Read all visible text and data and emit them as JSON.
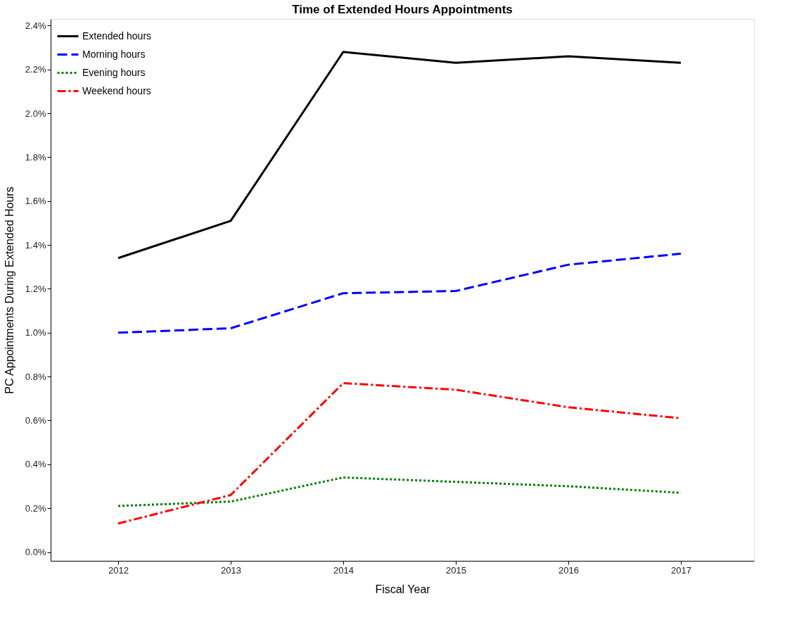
{
  "chart_data": {
    "type": "line",
    "title": "Time of Extended Hours Appointments",
    "xlabel": "Fiscal Year",
    "ylabel": "PC Appointments During Extended Hours",
    "x": [
      2012,
      2013,
      2014,
      2015,
      2016,
      2017
    ],
    "series": [
      {
        "name": "Extended hours",
        "color": "#000000",
        "line_style": "solid",
        "values": [
          1.34,
          1.51,
          2.28,
          2.23,
          2.26,
          2.23
        ]
      },
      {
        "name": "Morning hours",
        "color": "#0000ff",
        "line_style": "dashed",
        "values": [
          1.0,
          1.02,
          1.18,
          1.19,
          1.31,
          1.36
        ]
      },
      {
        "name": "Evening hours",
        "color": "#008000",
        "line_style": "dotted",
        "values": [
          0.21,
          0.23,
          0.34,
          0.32,
          0.3,
          0.27
        ]
      },
      {
        "name": "Weekend hours",
        "color": "#ff0000",
        "line_style": "dashdot",
        "values": [
          0.13,
          0.26,
          0.77,
          0.74,
          0.66,
          0.61
        ]
      }
    ],
    "xlim": [
      2011.4,
      2017.65
    ],
    "xticks": [
      2012,
      2013,
      2014,
      2015,
      2016,
      2017
    ],
    "ylim": [
      -0.04,
      2.43
    ],
    "yticks": [
      {
        "value": 0,
        "label": "0.0%"
      },
      {
        "value": 0.2,
        "label": "0.2%"
      },
      {
        "value": 0.4,
        "label": "0.4%"
      },
      {
        "value": 0.6,
        "label": "0.6%"
      },
      {
        "value": 0.8,
        "label": "0.8%"
      },
      {
        "value": 1.0,
        "label": "1.0%"
      },
      {
        "value": 1.2,
        "label": "1.2%"
      },
      {
        "value": 1.4,
        "label": "1.4%"
      },
      {
        "value": 1.6,
        "label": "1.6%"
      },
      {
        "value": 1.8,
        "label": "1.8%"
      },
      {
        "value": 2.0,
        "label": "2.0%"
      },
      {
        "value": 2.2,
        "label": "2.2%"
      },
      {
        "value": 2.4,
        "label": "2.4%"
      }
    ],
    "grid": false,
    "legend": "top left",
    "marker": "none"
  }
}
